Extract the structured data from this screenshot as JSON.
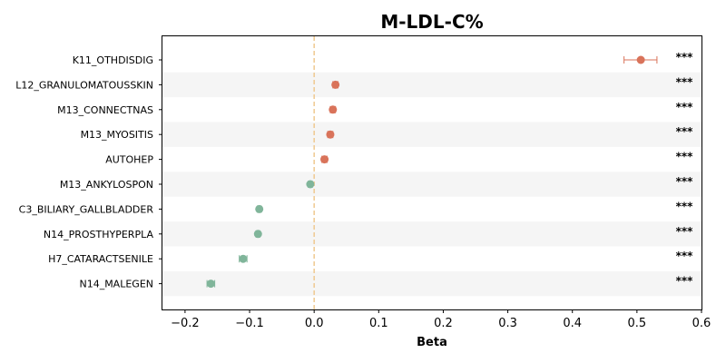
{
  "chart_data": {
    "type": "scatter",
    "title": "M-LDL-C%",
    "xlabel": "Beta",
    "ylabel": "",
    "xlim": [
      -0.235,
      0.6
    ],
    "xticks": [
      -0.2,
      -0.1,
      0.0,
      0.1,
      0.2,
      0.3,
      0.4,
      0.5,
      0.6
    ],
    "xtick_labels": [
      "−0.2",
      "−0.1",
      "0.0",
      "0.1",
      "0.2",
      "0.3",
      "0.4",
      "0.5",
      "0.6"
    ],
    "reference_line": 0,
    "grid": false,
    "colors": {
      "positive": "#d9735a",
      "negative": "#80b59a",
      "reference": "#f0c990",
      "band": "#f5f5f5"
    },
    "points": [
      {
        "label": "K11_OTHDISDIG",
        "beta": 0.506,
        "ci": [
          0.48,
          0.531
        ],
        "sig": "***"
      },
      {
        "label": "L12_GRANULOMATOUSSKIN",
        "beta": 0.033,
        "ci": [
          0.029,
          0.037
        ],
        "sig": "***"
      },
      {
        "label": "M13_CONNECTNAS",
        "beta": 0.029,
        "ci": [
          0.025,
          0.033
        ],
        "sig": "***"
      },
      {
        "label": "M13_MYOSITIS",
        "beta": 0.025,
        "ci": [
          0.021,
          0.029
        ],
        "sig": "***"
      },
      {
        "label": "AUTOHEP",
        "beta": 0.016,
        "ci": [
          0.012,
          0.02
        ],
        "sig": "***"
      },
      {
        "label": "M13_ANKYLOSPON",
        "beta": -0.006,
        "ci": [
          -0.009,
          -0.003
        ],
        "sig": "***"
      },
      {
        "label": "C3_BILIARY_GALLBLADDER",
        "beta": -0.085,
        "ci": [
          -0.088,
          -0.082
        ],
        "sig": "***"
      },
      {
        "label": "N14_PROSTHYPERPLA",
        "beta": -0.087,
        "ci": [
          -0.09,
          -0.084
        ],
        "sig": "***"
      },
      {
        "label": "H7_CATARACTSENILE",
        "beta": -0.11,
        "ci": [
          -0.116,
          -0.104
        ],
        "sig": "***"
      },
      {
        "label": "N14_MALEGEN",
        "beta": -0.16,
        "ci": [
          -0.166,
          -0.154
        ],
        "sig": "***"
      }
    ]
  }
}
